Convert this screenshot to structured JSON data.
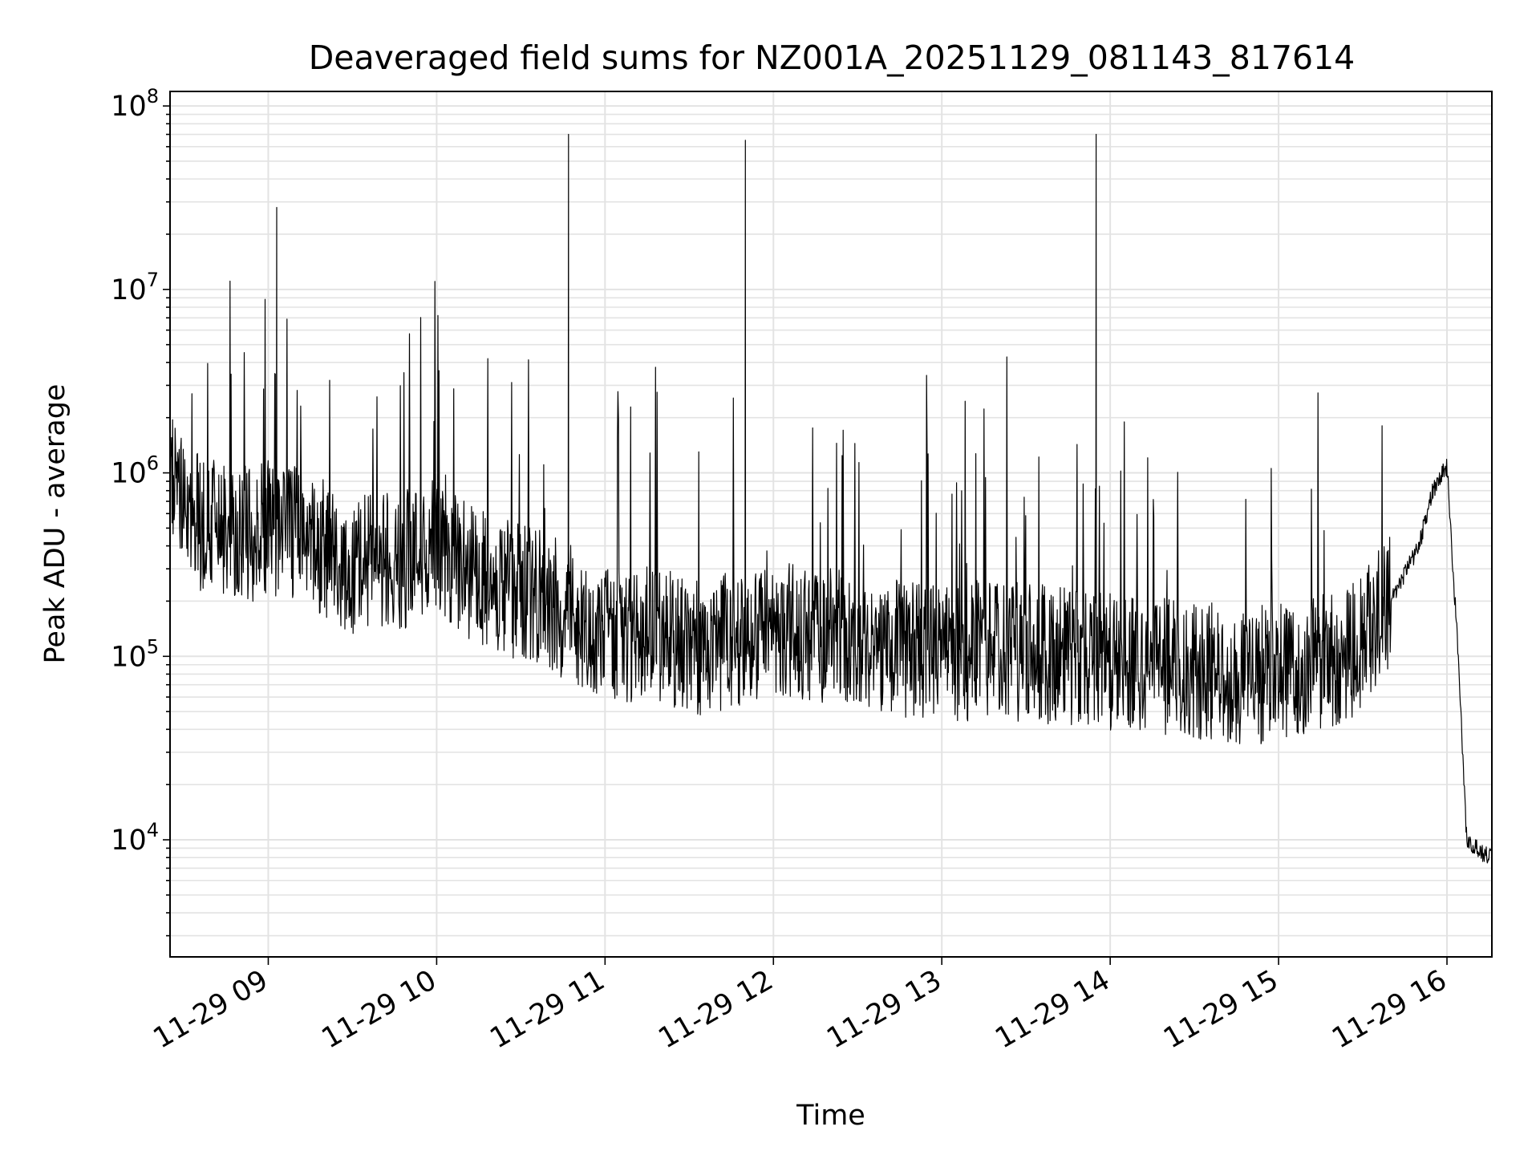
{
  "chart_data": {
    "type": "line",
    "title": "Deaveraged field sums for NZ001A_20251129_081143_817614",
    "xlabel": "Time",
    "ylabel": "Peak ADU - average",
    "yscale": "log",
    "ylim": [
      2300,
      120000000
    ],
    "xlim": [
      "2025-11-29T08:25:00",
      "2025-11-29T16:16:00"
    ],
    "grid": true,
    "x_ticks": [
      {
        "value": "2025-11-29T09:00:00",
        "label": "11-29 09"
      },
      {
        "value": "2025-11-29T10:00:00",
        "label": "11-29 10"
      },
      {
        "value": "2025-11-29T11:00:00",
        "label": "11-29 11"
      },
      {
        "value": "2025-11-29T12:00:00",
        "label": "11-29 12"
      },
      {
        "value": "2025-11-29T13:00:00",
        "label": "11-29 13"
      },
      {
        "value": "2025-11-29T14:00:00",
        "label": "11-29 14"
      },
      {
        "value": "2025-11-29T15:00:00",
        "label": "11-29 15"
      },
      {
        "value": "2025-11-29T16:00:00",
        "label": "11-29 16"
      }
    ],
    "y_ticks": [
      {
        "value": 10000,
        "base": "10",
        "exp": "4"
      },
      {
        "value": 100000,
        "base": "10",
        "exp": "5"
      },
      {
        "value": 1000000,
        "base": "10",
        "exp": "6"
      },
      {
        "value": 10000000,
        "base": "10",
        "exp": "7"
      },
      {
        "value": 100000000,
        "base": "10",
        "exp": "8"
      }
    ],
    "line_color": "#000000",
    "grid_color": "#e3e3e3",
    "series": [
      {
        "x": [
          "2025-11-29T08:25:00",
          "2025-11-29T08:30:00",
          "2025-11-29T08:35:00",
          "2025-11-29T08:40:00",
          "2025-11-29T08:45:00",
          "2025-11-29T08:50:00",
          "2025-11-29T08:55:00",
          "2025-11-29T09:00:00",
          "2025-11-29T09:03:00",
          "2025-11-29T09:10:00",
          "2025-11-29T09:20:00",
          "2025-11-29T09:30:00",
          "2025-11-29T09:38:00",
          "2025-11-29T09:45:00",
          "2025-11-29T09:55:00",
          "2025-11-29T10:00:00",
          "2025-11-29T10:10:00",
          "2025-11-29T10:18:00",
          "2025-11-29T10:30:00",
          "2025-11-29T10:40:00",
          "2025-11-29T10:47:00",
          "2025-11-29T10:55:00",
          "2025-11-29T11:05:00",
          "2025-11-29T11:15:00",
          "2025-11-29T11:30:00",
          "2025-11-29T11:45:00",
          "2025-11-29T11:50:00",
          "2025-11-29T12:00:00",
          "2025-11-29T12:15:00",
          "2025-11-29T12:30:00",
          "2025-11-29T12:45:00",
          "2025-11-29T13:00:00",
          "2025-11-29T13:15:00",
          "2025-11-29T13:30:00",
          "2025-11-29T13:45:00",
          "2025-11-29T13:55:00",
          "2025-11-29T14:00:00",
          "2025-11-29T14:15:00",
          "2025-11-29T14:30:00",
          "2025-11-29T14:45:00",
          "2025-11-29T15:00:00",
          "2025-11-29T15:15:00",
          "2025-11-29T15:30:00",
          "2025-11-29T15:40:00",
          "2025-11-29T15:50:00",
          "2025-11-29T15:55:00",
          "2025-11-29T16:00:00",
          "2025-11-29T16:04:00",
          "2025-11-29T16:07:00",
          "2025-11-29T16:10:00",
          "2025-11-29T16:16:00"
        ],
        "y": [
          1000000,
          600000,
          550000,
          500000,
          450000,
          500000,
          450000,
          500000,
          28000000,
          450000,
          400000,
          300000,
          350000,
          320000,
          380000,
          400000,
          300000,
          250000,
          220000,
          200000,
          70000000,
          150000,
          130000,
          140000,
          110000,
          120000,
          65000000,
          140000,
          130000,
          120000,
          110000,
          100000,
          110000,
          105000,
          100000,
          70000000,
          95000,
          90000,
          85000,
          80000,
          80000,
          90000,
          120000,
          200000,
          400000,
          800000,
          1100000,
          100000,
          10000,
          9000,
          8000
        ]
      }
    ]
  }
}
